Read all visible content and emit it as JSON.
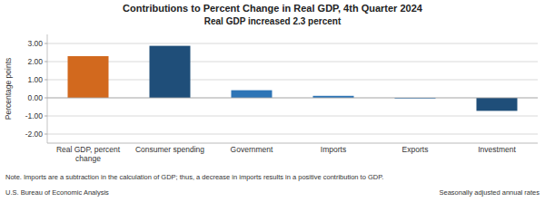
{
  "chart_data": {
    "type": "bar",
    "title": "Contributions to Percent Change in Real GDP, 4th Quarter 2024",
    "subtitle": "Real GDP increased 2.3 percent",
    "categories": [
      "Real GDP, percent\nchange",
      "Consumer spending",
      "Government",
      "Imports",
      "Exports",
      "Investment"
    ],
    "values": [
      2.3,
      2.87,
      0.42,
      0.11,
      -0.04,
      -0.72
    ],
    "colors": [
      "#D2691E",
      "#1F4E79",
      "#2E75B6",
      "#2E75B6",
      "#2E75B6",
      "#1F4E79"
    ],
    "y_label": "Percentage points",
    "ylim": [
      -2.5,
      3.5
    ],
    "yticks": [
      {
        "value": -2,
        "label": "-2.00"
      },
      {
        "value": -1,
        "label": "-1.00"
      },
      {
        "value": 0,
        "label": "0.00"
      },
      {
        "value": 1,
        "label": "1.00"
      },
      {
        "value": 2,
        "label": "2.00"
      },
      {
        "value": 3,
        "label": "3.00"
      }
    ],
    "grid": true,
    "annotations": [
      "Note. Imports are a subtraction in the calculation of GDP; thus, a decrease in imports results in a positive contribution to GDP.",
      "U.S. Bureau of Economic Analysis",
      "Seasonally adjusted annual rates"
    ]
  }
}
